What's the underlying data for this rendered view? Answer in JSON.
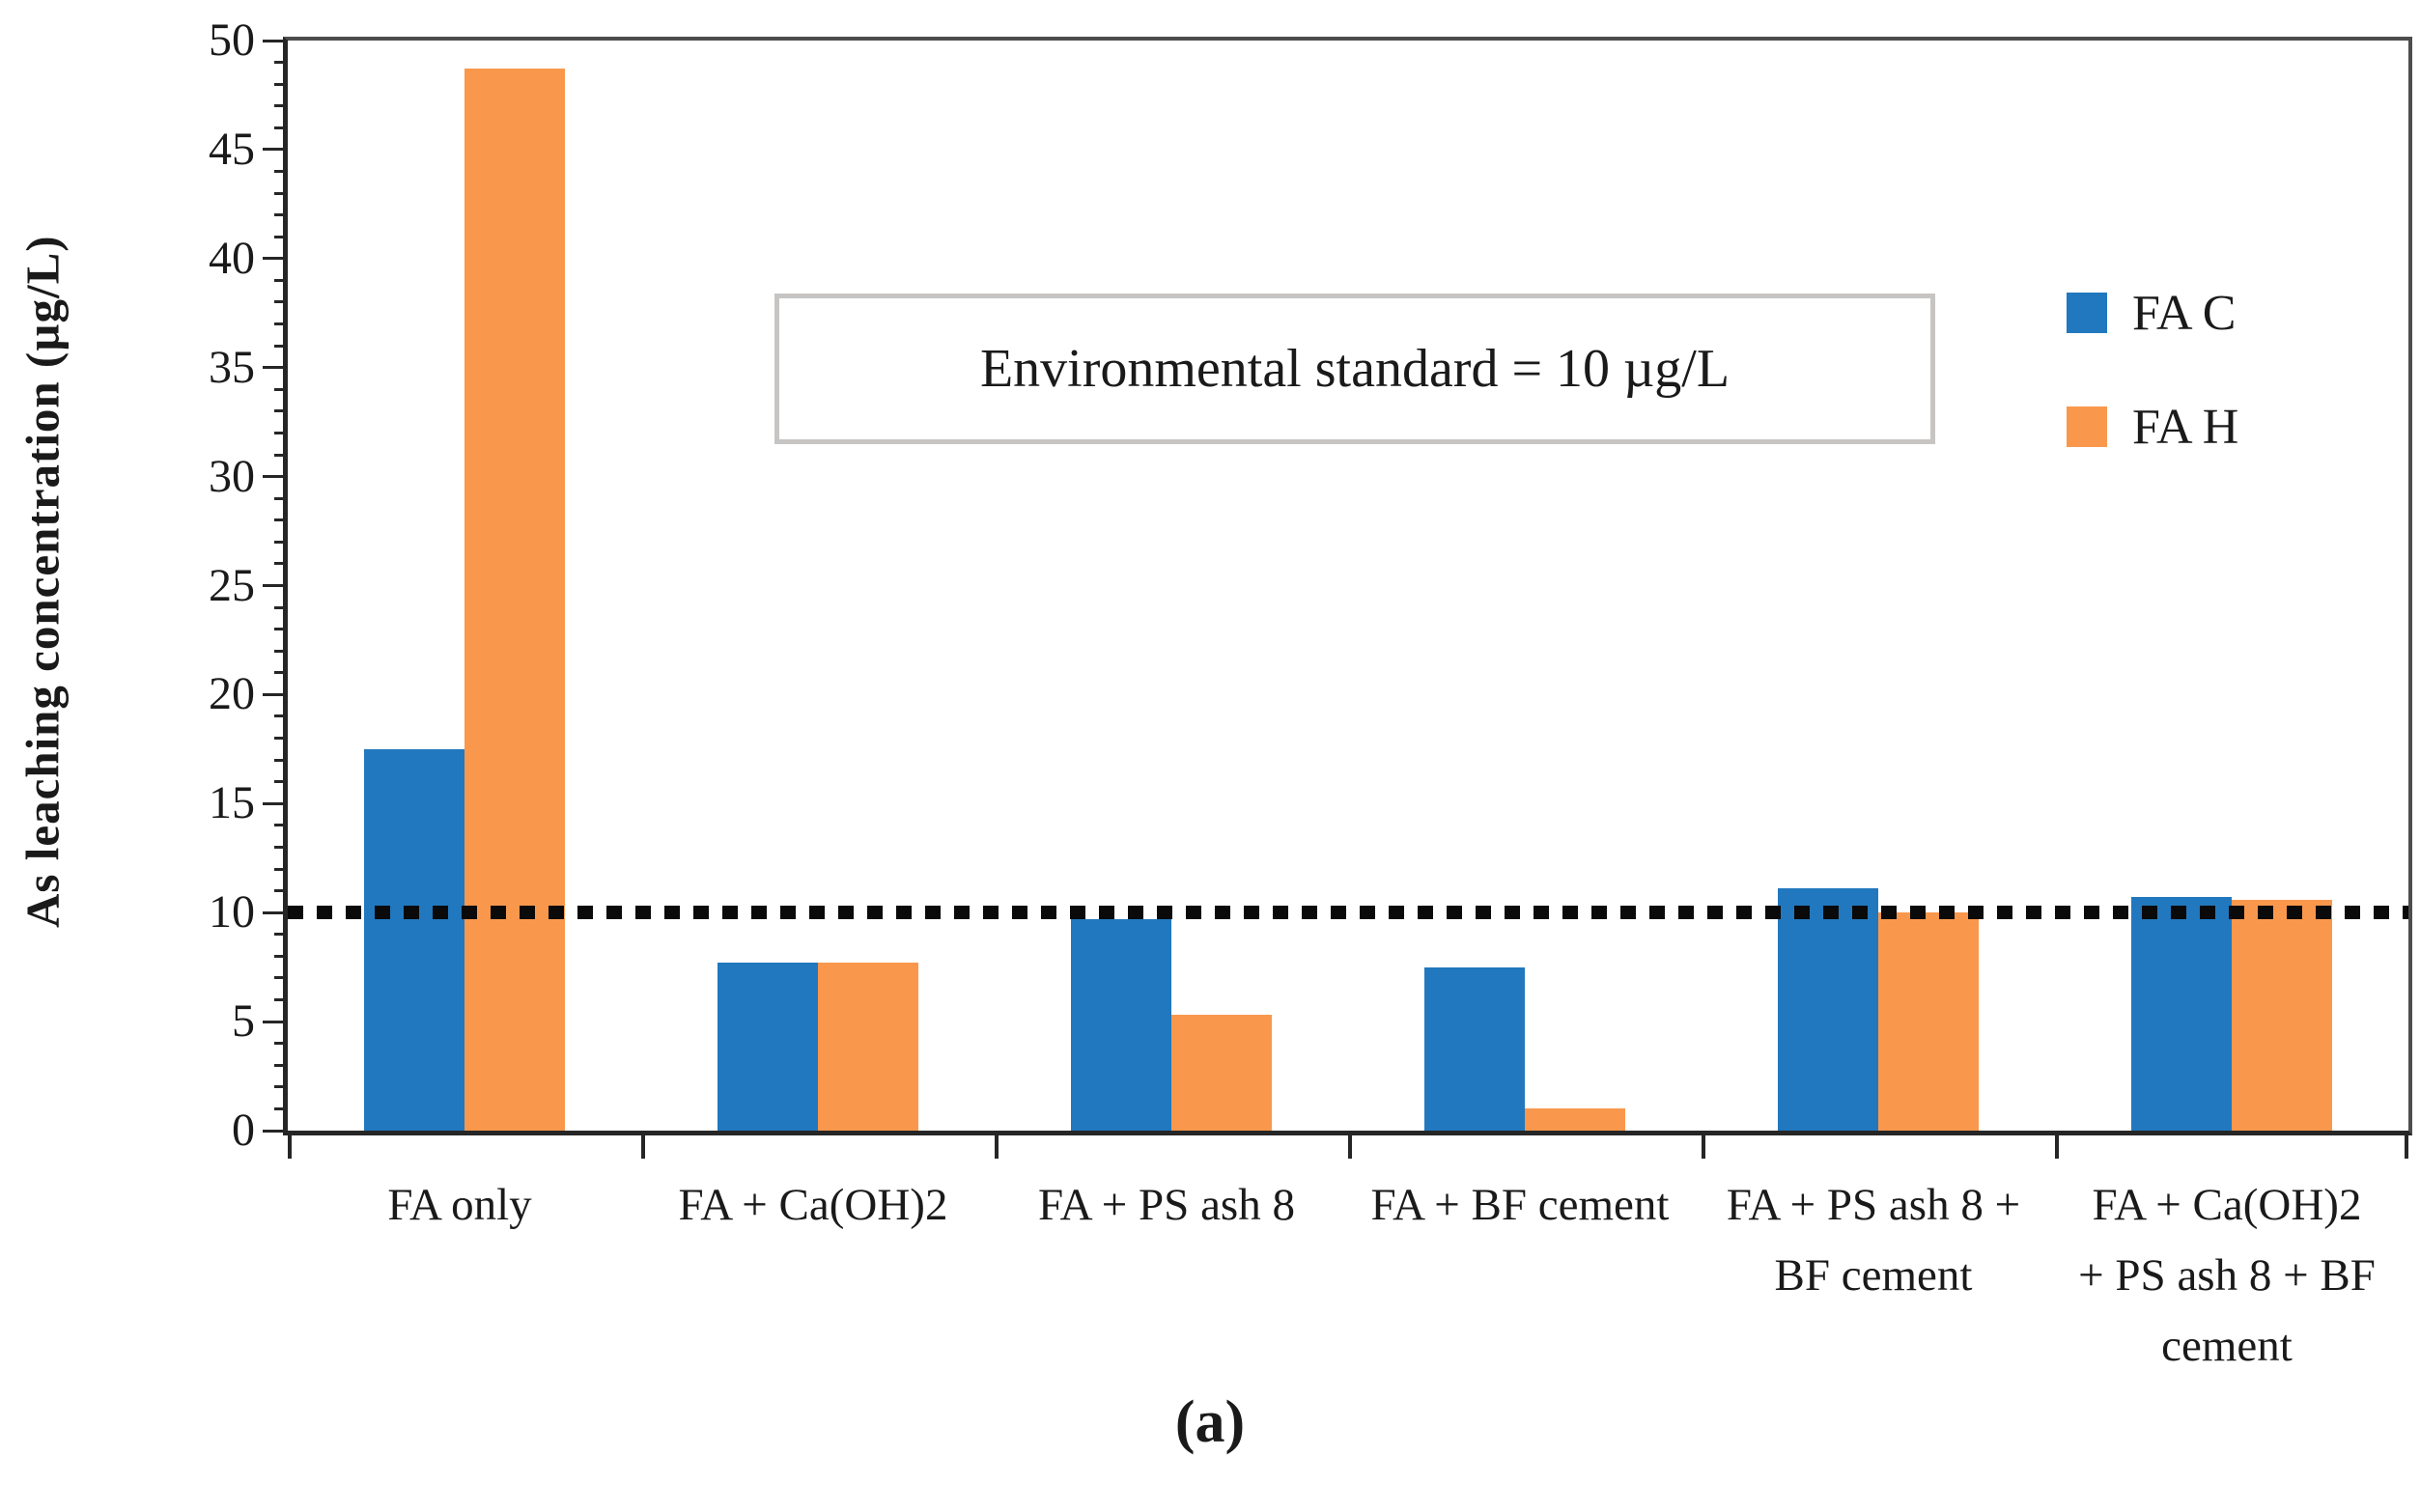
{
  "chart_data": {
    "type": "bar",
    "title": "",
    "ylabel": "As leaching concentration (µg/L)",
    "xlabel": "",
    "ylim": [
      0,
      50
    ],
    "ytick_step": 5,
    "minor_tick_step": 1,
    "yticks": [
      0,
      5,
      10,
      15,
      20,
      25,
      30,
      35,
      40,
      45,
      50
    ],
    "grid": false,
    "legend_position": "right-top",
    "categories": [
      "FA only",
      "FA + Ca(OH)2",
      "FA + PS ash 8",
      "FA + BF cement",
      "FA + PS ash 8 +\nBF cement",
      "FA + Ca(OH)2\n+ PS ash 8 + BF\ncement"
    ],
    "series": [
      {
        "name": "FA C",
        "color": "#2178BE",
        "values": [
          17.5,
          7.7,
          9.7,
          7.5,
          11.1,
          10.7
        ]
      },
      {
        "name": "FA H",
        "color": "#F9984D",
        "values": [
          48.7,
          7.7,
          5.3,
          1.0,
          10.0,
          10.6
        ]
      }
    ],
    "threshold": {
      "value": 10,
      "label": "Environmental standard = 10 µg/L",
      "color": "#0a0a0a"
    }
  },
  "caption": "(a)",
  "colors": {
    "axis": "#262626",
    "spine": "#4d4d4d",
    "annotation_border": "#c6c5c3"
  }
}
